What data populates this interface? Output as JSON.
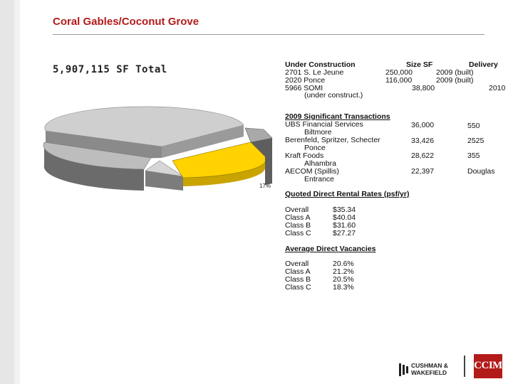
{
  "header": {
    "title": "Coral Gables/Coconut Grove"
  },
  "summary": {
    "total": "5,907,115 SF Total"
  },
  "pie": {
    "label_pct": "17%",
    "highlight_color": "#ffd200"
  },
  "construction": {
    "headers": {
      "name": "Under Construction",
      "size": "Size SF",
      "delivery": "Delivery"
    },
    "rows": [
      {
        "name": "2701 S. Le Jeune",
        "size": "250,000",
        "delivery": "2009 (built)"
      },
      {
        "name": "2020 Ponce",
        "size": "116,000",
        "delivery": "2009 (built)"
      },
      {
        "name": "5966 SOMI",
        "size": "38,800",
        "delivery": "2010"
      }
    ],
    "note": "(under construct.)"
  },
  "transactions": {
    "heading": "2009 Significant Transactions",
    "rows": [
      {
        "name": "UBS Financial Services",
        "sub": "Biltmore",
        "sf": "36,000",
        "addr": "550"
      },
      {
        "name": "Berenfeld, Spritzer, Schecter",
        "sub": "Ponce",
        "sf": "33,426",
        "addr": "2525"
      },
      {
        "name": "Kraft Foods",
        "sub": "Alhambra",
        "sf": "28,622",
        "addr": "355"
      },
      {
        "name": "AECOM (Spillis)",
        "sub": "Entrance",
        "sf": "22,397",
        "addr": "Douglas"
      }
    ]
  },
  "rates": {
    "heading": "Quoted Direct Rental Rates (psf/yr)",
    "rows": [
      {
        "label": "Overall",
        "value": "$35.34"
      },
      {
        "label": "Class A",
        "value": "$40.04"
      },
      {
        "label": "Class B",
        "value": "$31.60"
      },
      {
        "label": "Class C",
        "value": "$27.27"
      }
    ]
  },
  "vacancies": {
    "heading": "Average Direct Vacancies",
    "rows": [
      {
        "label": "Overall",
        "value": "20.6%"
      },
      {
        "label": "Class A",
        "value": "21.2%"
      },
      {
        "label": "Class B",
        "value": "20.5%"
      },
      {
        "label": "Class C",
        "value": "18.3%"
      }
    ]
  },
  "logos": {
    "cw_line1": "CUSHMAN &",
    "cw_line2": "WAKEFIELD",
    "ccim": "CCIM"
  }
}
